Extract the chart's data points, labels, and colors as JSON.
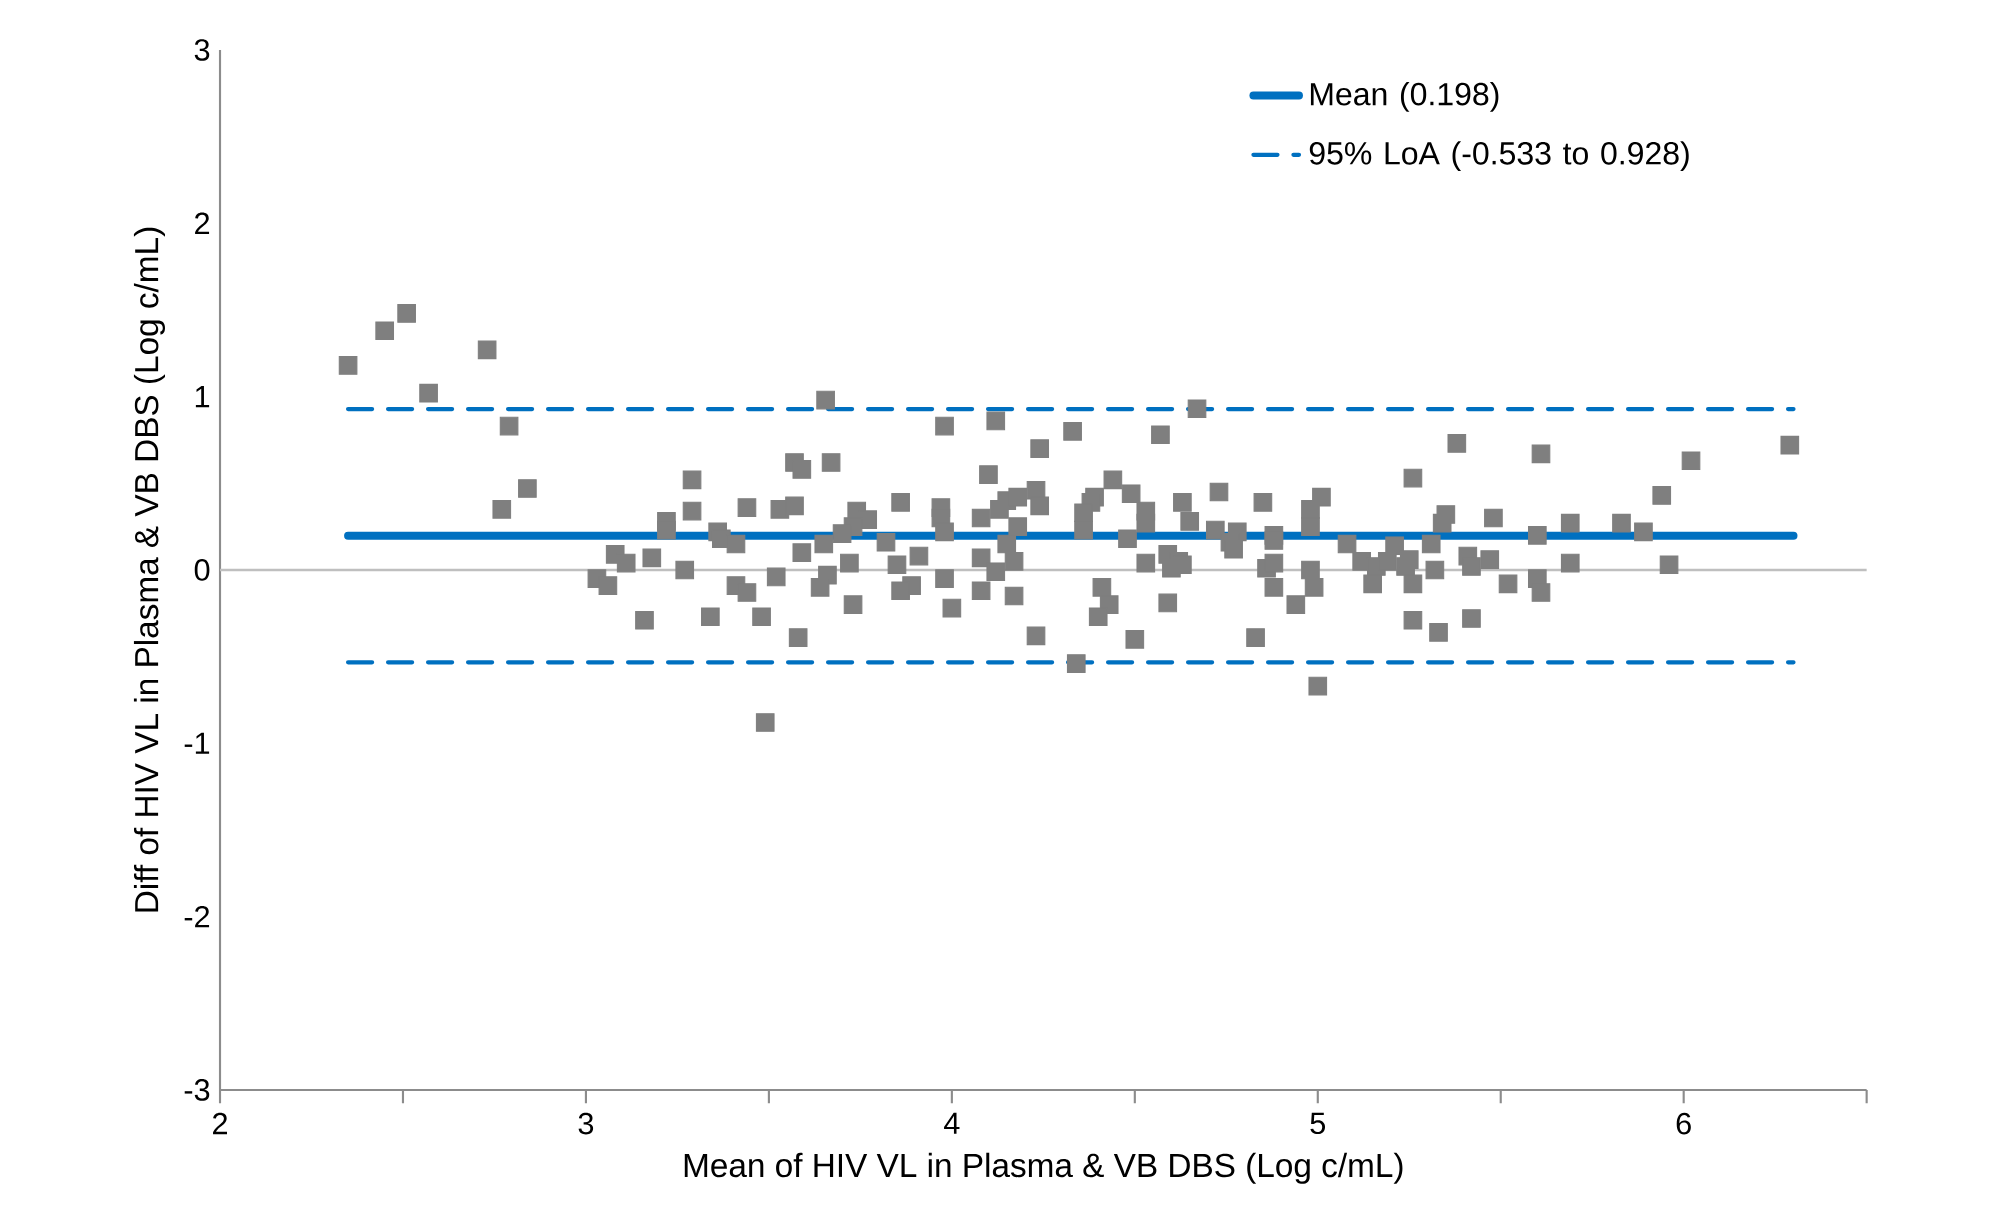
{
  "chart_data": {
    "type": "scatter",
    "xlabel": "Mean of HIV VL in Plasma & VB DBS (Log c/mL)",
    "ylabel": "Diff of HIV VL in Plasma & VB DBS (Log c/mL)",
    "xlim": [
      2,
      6.5
    ],
    "ylim": [
      -3,
      3
    ],
    "xticks": [
      2,
      {
        "value": 2.5,
        "label": null
      },
      3,
      {
        "value": 3.5,
        "label": null
      },
      4,
      {
        "value": 4.5,
        "label": null
      },
      5,
      {
        "value": 5.5,
        "label": null
      },
      6,
      {
        "value": 6.5,
        "label": null
      }
    ],
    "yticks": [
      -3,
      -2,
      -1,
      0,
      1,
      2,
      3
    ],
    "grid": false,
    "legend": "top right",
    "ref_lines": [
      {
        "axis": "y",
        "value": 0,
        "color": "#bfbfbf"
      }
    ],
    "series": [
      {
        "type": "line",
        "name": "Mean (0.198)",
        "color": "#0070c0",
        "line_style": "solid",
        "marker": "none",
        "x": [
          2.35,
          6.3
        ],
        "values": [
          0.198,
          0.198
        ]
      },
      {
        "type": "line",
        "name": "95% LoA (-0.533 to 0.928)",
        "color": "#0070c0",
        "line_style": "dashed",
        "marker": "none",
        "x": [
          2.35,
          6.3
        ],
        "values": [
          0.928,
          0.928
        ]
      },
      {
        "type": "line",
        "color": "#0070c0",
        "line_style": "dashed",
        "marker": "none",
        "x": [
          2.35,
          6.3
        ],
        "values": [
          -0.533,
          -0.533
        ]
      },
      {
        "color": "#7f7f7f",
        "marker": "square",
        "x": [
          2.35,
          2.45,
          2.51,
          2.73,
          2.57,
          2.79,
          2.84,
          2.77,
          3.29,
          3.29,
          3.22,
          3.22,
          3.08,
          3.11,
          3.18,
          3.03,
          3.06,
          3.27,
          3.16,
          3.655,
          3.98,
          4.12,
          4.24,
          3.57,
          3.59,
          3.67,
          4.1,
          4.23,
          4.24,
          3.44,
          3.53,
          3.57,
          3.74,
          3.77,
          3.73,
          3.86,
          3.97,
          3.97,
          3.98,
          4.08,
          4.13,
          4.15,
          4.18,
          4.18,
          3.36,
          3.37,
          3.41,
          3.7,
          3.65,
          3.82,
          3.59,
          3.91,
          4.15,
          4.08,
          4.17,
          3.72,
          3.85,
          3.52,
          3.66,
          4.12,
          3.98,
          3.41,
          3.44,
          3.64,
          3.89,
          3.86,
          4.08,
          4.17,
          3.73,
          4.0,
          3.34,
          3.48,
          3.58,
          4.23,
          3.49,
          4.67,
          4.33,
          4.57,
          4.44,
          4.49,
          4.39,
          4.38,
          4.36,
          4.53,
          4.53,
          4.63,
          4.65,
          4.73,
          4.85,
          5.01,
          4.98,
          4.98,
          4.36,
          4.48,
          4.72,
          4.78,
          4.76,
          4.77,
          4.88,
          4.88,
          5.08,
          5.21,
          5.26,
          4.53,
          4.59,
          4.62,
          4.6,
          4.63,
          4.86,
          4.88,
          4.98,
          5.12,
          5.16,
          5.19,
          5.24,
          5.25,
          4.41,
          4.88,
          4.99,
          5.15,
          5.26,
          4.43,
          4.4,
          4.59,
          4.94,
          5.26,
          4.5,
          4.83,
          4.34,
          5.0,
          5.38,
          5.61,
          6.02,
          6.29,
          5.94,
          5.35,
          5.34,
          5.48,
          5.69,
          5.83,
          5.89,
          5.6,
          5.31,
          5.41,
          5.42,
          5.47,
          5.32,
          5.69,
          5.96,
          5.6,
          5.52,
          5.61,
          5.33,
          5.42
        ],
        "values": [
          1.18,
          1.38,
          1.48,
          1.27,
          1.02,
          0.83,
          0.47,
          0.35,
          0.52,
          0.34,
          0.28,
          0.23,
          0.09,
          0.04,
          0.07,
          -0.05,
          -0.09,
          0.0,
          -0.29,
          0.98,
          0.83,
          0.86,
          0.7,
          0.62,
          0.58,
          0.62,
          0.55,
          0.46,
          0.37,
          0.36,
          0.35,
          0.37,
          0.34,
          0.29,
          0.25,
          0.39,
          0.36,
          0.3,
          0.22,
          0.3,
          0.35,
          0.4,
          0.42,
          0.25,
          0.22,
          0.18,
          0.15,
          0.21,
          0.15,
          0.16,
          0.1,
          0.08,
          0.15,
          0.07,
          0.05,
          0.04,
          0.03,
          -0.04,
          -0.03,
          -0.01,
          -0.05,
          -0.09,
          -0.13,
          -0.1,
          -0.09,
          -0.12,
          -0.12,
          -0.15,
          -0.2,
          -0.22,
          -0.27,
          -0.27,
          -0.39,
          -0.38,
          -0.88,
          0.93,
          0.8,
          0.78,
          0.52,
          0.44,
          0.42,
          0.39,
          0.33,
          0.34,
          0.27,
          0.39,
          0.28,
          0.45,
          0.39,
          0.42,
          0.35,
          0.25,
          0.23,
          0.18,
          0.23,
          0.22,
          0.16,
          0.12,
          0.2,
          0.17,
          0.15,
          0.14,
          0.53,
          0.04,
          0.09,
          0.05,
          0.01,
          0.03,
          0.01,
          0.04,
          0.0,
          0.05,
          0.02,
          0.05,
          0.02,
          0.06,
          -0.1,
          -0.1,
          -0.1,
          -0.08,
          -0.08,
          -0.2,
          -0.27,
          -0.19,
          -0.2,
          -0.29,
          -0.4,
          -0.39,
          -0.54,
          -0.67,
          0.73,
          0.67,
          0.63,
          0.72,
          0.43,
          0.32,
          0.27,
          0.3,
          0.27,
          0.27,
          0.22,
          0.2,
          0.15,
          0.08,
          0.02,
          0.06,
          0.0,
          0.04,
          0.03,
          -0.05,
          -0.08,
          -0.13,
          -0.36,
          -0.28
        ]
      }
    ]
  }
}
